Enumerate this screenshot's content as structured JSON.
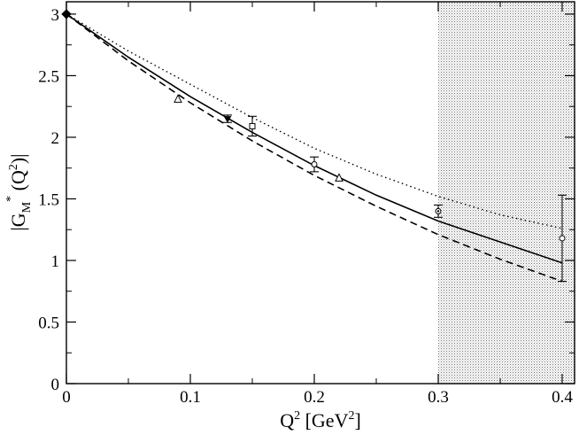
{
  "chart_data": {
    "type": "line",
    "title": "",
    "xlabel": {
      "base": "Q",
      "sup": "2",
      "rest": " [GeV",
      "sup2": "2",
      "close": "]"
    },
    "ylabel": {
      "pre": "|G",
      "sub": "M",
      "star": "*",
      "mid": " (Q",
      "sup": "2",
      "close": ")|"
    },
    "xlim": [
      0,
      0.41
    ],
    "ylim": [
      0,
      3.1
    ],
    "x_ticks": [
      0,
      0.1,
      0.2,
      0.3,
      0.4
    ],
    "x_tick_labels": [
      "0",
      "0.1",
      "0.2",
      "0.3",
      "0.4"
    ],
    "y_ticks": [
      0,
      0.5,
      1,
      1.5,
      2,
      2.5,
      3
    ],
    "y_tick_labels": [
      "0",
      "0.5",
      "1",
      "1.5",
      "2",
      "2.5",
      "3"
    ],
    "shaded_region": {
      "x_from": 0.3,
      "x_to": 0.41,
      "pattern": "dotted"
    },
    "series": [
      {
        "style": "solid",
        "x": [
          0,
          0.05,
          0.1,
          0.15,
          0.2,
          0.25,
          0.3,
          0.35,
          0.4
        ],
        "y": [
          3.0,
          2.65,
          2.33,
          2.04,
          1.77,
          1.53,
          1.32,
          1.15,
          0.98
        ]
      },
      {
        "style": "dashed",
        "x": [
          0,
          0.05,
          0.1,
          0.15,
          0.2,
          0.25,
          0.3,
          0.35,
          0.4
        ],
        "y": [
          3.0,
          2.62,
          2.28,
          1.97,
          1.69,
          1.44,
          1.21,
          1.01,
          0.83
        ]
      },
      {
        "style": "dotted",
        "x": [
          0,
          0.05,
          0.1,
          0.15,
          0.2,
          0.25,
          0.3,
          0.35,
          0.4
        ],
        "y": [
          3.0,
          2.7,
          2.43,
          2.16,
          1.91,
          1.7,
          1.52,
          1.37,
          1.26
        ]
      }
    ],
    "points": [
      {
        "x": 0.0,
        "y": 3.0,
        "err": 0,
        "marker": "diamond-filled"
      },
      {
        "x": 0.09,
        "y": 2.31,
        "err": 0,
        "marker": "triangle-up"
      },
      {
        "x": 0.13,
        "y": 2.15,
        "err": 0.03,
        "marker": "triangle-down-filled"
      },
      {
        "x": 0.15,
        "y": 2.09,
        "err": 0.08,
        "marker": "square"
      },
      {
        "x": 0.2,
        "y": 1.78,
        "err": 0.06,
        "marker": "circle"
      },
      {
        "x": 0.22,
        "y": 1.67,
        "err": 0,
        "marker": "triangle-up"
      },
      {
        "x": 0.3,
        "y": 1.4,
        "err": 0.05,
        "marker": "circle-dot"
      },
      {
        "x": 0.4,
        "y": 1.18,
        "err": 0.35,
        "marker": "circle"
      }
    ]
  }
}
